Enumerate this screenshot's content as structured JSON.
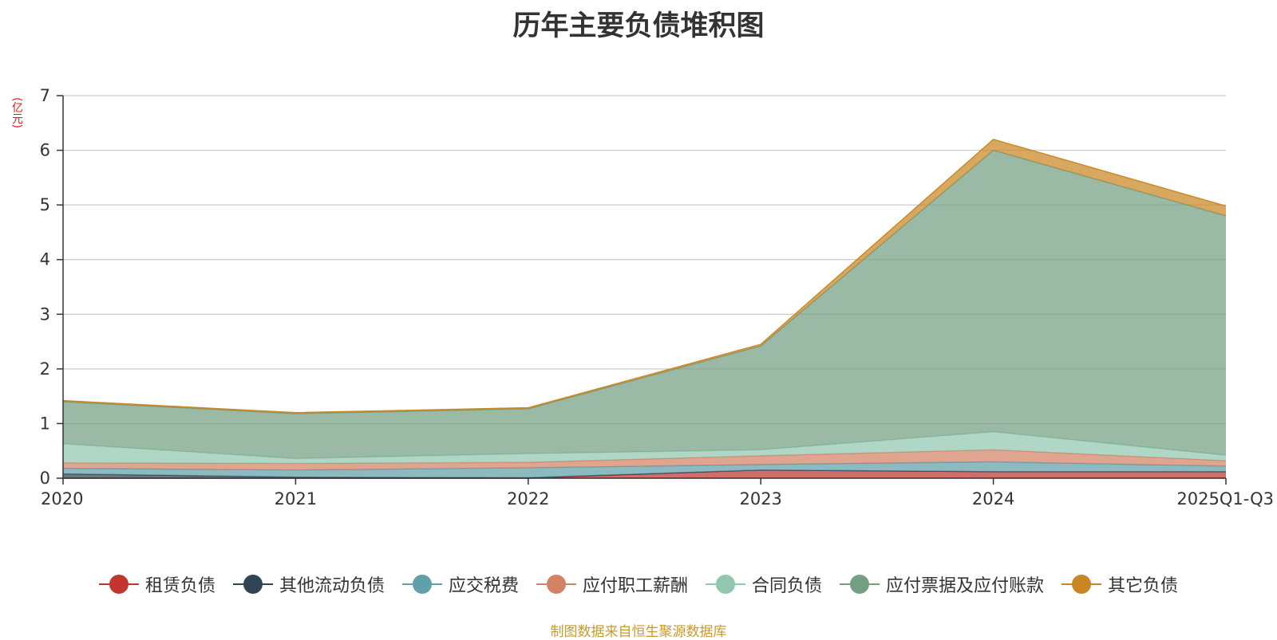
{
  "chart_data": {
    "type": "area",
    "stacked": true,
    "title": "历年主要负债堆积图",
    "unit_label": "(亿元)",
    "source_note": "制图数据来自恒生聚源数据库",
    "categories": [
      "2020",
      "2021",
      "2022",
      "2023",
      "2024",
      "2025Q1-Q3"
    ],
    "y_ticks": [
      "0",
      "1",
      "2",
      "3",
      "4",
      "5",
      "6",
      "7"
    ],
    "ylim": [
      0,
      7
    ],
    "grid": true,
    "legend_position": "bottom",
    "series": [
      {
        "name": "租赁负债",
        "color": "#c23531",
        "values": [
          0.0,
          0.0,
          0.0,
          0.15,
          0.12,
          0.12
        ]
      },
      {
        "name": "其他流动负债",
        "color": "#2f4554",
        "values": [
          0.08,
          0.02,
          0.01,
          0.0,
          0.0,
          0.0
        ]
      },
      {
        "name": "应交税费",
        "color": "#61a0a8",
        "values": [
          0.1,
          0.13,
          0.18,
          0.1,
          0.18,
          0.1
        ]
      },
      {
        "name": "应付职工薪酬",
        "color": "#d48265",
        "values": [
          0.1,
          0.12,
          0.1,
          0.16,
          0.22,
          0.1
        ]
      },
      {
        "name": "合同负债",
        "color": "#91c7ae",
        "values": [
          0.35,
          0.09,
          0.16,
          0.11,
          0.33,
          0.1
        ]
      },
      {
        "name": "应付票据及应付账款",
        "color": "#749f83",
        "values": [
          0.77,
          0.82,
          0.82,
          1.9,
          5.15,
          4.38
        ]
      },
      {
        "name": "其它负债",
        "color": "#ca8622",
        "values": [
          0.02,
          0.02,
          0.02,
          0.03,
          0.2,
          0.18
        ]
      }
    ]
  }
}
